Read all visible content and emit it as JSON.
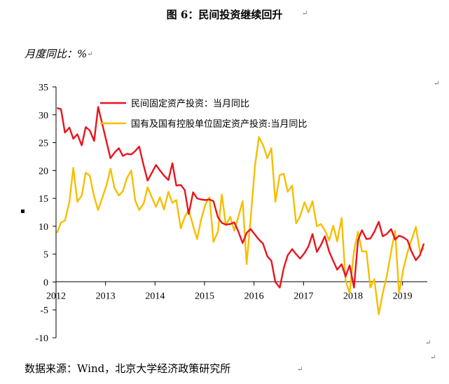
{
  "title": "图 6：民间投资继续回升",
  "unit_label": "月度同比：%",
  "source": "数据来源：Wind，北京大学经济政策研究所",
  "chart_data": {
    "type": "line",
    "title": "图 6：民间投资继续回升",
    "ylabel": "月度同比：%",
    "xlabel": "",
    "ylim": [
      -10,
      35
    ],
    "yticks": [
      "-10",
      "-5",
      "0",
      "5",
      "10",
      "15",
      "20",
      "25",
      "30",
      "35"
    ],
    "xlim": [
      2012,
      2019.5
    ],
    "xticks": [
      "2012",
      "2013",
      "2014",
      "2015",
      "2016",
      "2017",
      "2018",
      "2019"
    ],
    "legend_position": "top",
    "grid": false,
    "series": [
      {
        "name": "民间固定资产投资：当月同比",
        "color": "#e8141e",
        "points": [
          [
            2012.02,
            31.2
          ],
          [
            2012.1,
            31.0
          ],
          [
            2012.18,
            26.8
          ],
          [
            2012.27,
            27.7
          ],
          [
            2012.35,
            25.7
          ],
          [
            2012.43,
            26.5
          ],
          [
            2012.52,
            24.5
          ],
          [
            2012.6,
            27.8
          ],
          [
            2012.68,
            27.2
          ],
          [
            2012.77,
            25.3
          ],
          [
            2012.85,
            31.4
          ],
          [
            2012.93,
            28.5
          ],
          [
            2013.1,
            22.2
          ],
          [
            2013.18,
            23.2
          ],
          [
            2013.27,
            24.0
          ],
          [
            2013.35,
            22.6
          ],
          [
            2013.43,
            23.0
          ],
          [
            2013.52,
            22.9
          ],
          [
            2013.6,
            23.5
          ],
          [
            2013.68,
            24.3
          ],
          [
            2013.77,
            20.9
          ],
          [
            2013.85,
            18.2
          ],
          [
            2013.93,
            19.5
          ],
          [
            2014.02,
            21.0
          ],
          [
            2014.1,
            20.0
          ],
          [
            2014.18,
            19.1
          ],
          [
            2014.27,
            18.3
          ],
          [
            2014.35,
            21.3
          ],
          [
            2014.43,
            17.3
          ],
          [
            2014.52,
            17.4
          ],
          [
            2014.6,
            16.5
          ],
          [
            2014.68,
            12.2
          ],
          [
            2014.77,
            16.1
          ],
          [
            2014.85,
            15.0
          ],
          [
            2014.93,
            14.8
          ],
          [
            2015.02,
            14.7
          ],
          [
            2015.1,
            14.8
          ],
          [
            2015.18,
            14.5
          ],
          [
            2015.27,
            11.6
          ],
          [
            2015.35,
            10.6
          ],
          [
            2015.43,
            10.3
          ],
          [
            2015.52,
            10.4
          ],
          [
            2015.6,
            10.7
          ],
          [
            2015.68,
            9.1
          ],
          [
            2015.77,
            7.0
          ],
          [
            2015.85,
            8.8
          ],
          [
            2015.93,
            9.5
          ],
          [
            2016.1,
            7.6
          ],
          [
            2016.18,
            6.9
          ],
          [
            2016.27,
            4.6
          ],
          [
            2016.35,
            3.8
          ],
          [
            2016.43,
            0.0
          ],
          [
            2016.52,
            -1.0
          ],
          [
            2016.6,
            2.5
          ],
          [
            2016.68,
            4.8
          ],
          [
            2016.77,
            5.9
          ],
          [
            2016.85,
            5.0
          ],
          [
            2016.93,
            4.2
          ],
          [
            2017.02,
            5.2
          ],
          [
            2017.1,
            6.4
          ],
          [
            2017.18,
            8.6
          ],
          [
            2017.27,
            5.4
          ],
          [
            2017.35,
            6.6
          ],
          [
            2017.43,
            8.2
          ],
          [
            2017.52,
            5.4
          ],
          [
            2017.6,
            3.8
          ],
          [
            2017.68,
            2.2
          ],
          [
            2017.77,
            3.2
          ],
          [
            2017.85,
            1.0
          ],
          [
            2017.93,
            3.0
          ],
          [
            2018.02,
            -1.0
          ],
          [
            2018.1,
            7.5
          ],
          [
            2018.18,
            9.3
          ],
          [
            2018.27,
            7.7
          ],
          [
            2018.35,
            7.8
          ],
          [
            2018.43,
            9.0
          ],
          [
            2018.52,
            10.8
          ],
          [
            2018.6,
            8.2
          ],
          [
            2018.68,
            8.6
          ],
          [
            2018.77,
            9.5
          ],
          [
            2018.85,
            7.6
          ],
          [
            2018.93,
            8.3
          ],
          [
            2019.02,
            8.0
          ],
          [
            2019.1,
            7.5
          ],
          [
            2019.18,
            5.5
          ],
          [
            2019.27,
            3.9
          ],
          [
            2019.35,
            4.8
          ],
          [
            2019.43,
            6.9
          ]
        ]
      },
      {
        "name": "国有及国有控股单位固定资产投资:当月同比",
        "color": "#f6be00",
        "points": [
          [
            2012.02,
            8.8
          ],
          [
            2012.1,
            10.7
          ],
          [
            2012.18,
            11.0
          ],
          [
            2012.27,
            14.4
          ],
          [
            2012.35,
            20.5
          ],
          [
            2012.43,
            14.4
          ],
          [
            2012.52,
            15.5
          ],
          [
            2012.6,
            19.6
          ],
          [
            2012.68,
            19.1
          ],
          [
            2012.77,
            15.3
          ],
          [
            2012.85,
            12.9
          ],
          [
            2012.93,
            15.0
          ],
          [
            2013.02,
            17.4
          ],
          [
            2013.1,
            20.3
          ],
          [
            2013.18,
            16.9
          ],
          [
            2013.27,
            15.5
          ],
          [
            2013.35,
            16.3
          ],
          [
            2013.43,
            18.6
          ],
          [
            2013.52,
            20.0
          ],
          [
            2013.6,
            14.6
          ],
          [
            2013.68,
            12.9
          ],
          [
            2013.77,
            14.1
          ],
          [
            2013.85,
            17.0
          ],
          [
            2013.93,
            15.3
          ],
          [
            2014.02,
            13.5
          ],
          [
            2014.1,
            15.2
          ],
          [
            2014.18,
            13.0
          ],
          [
            2014.27,
            16.2
          ],
          [
            2014.35,
            14.2
          ],
          [
            2014.43,
            14.7
          ],
          [
            2014.52,
            9.6
          ],
          [
            2014.6,
            11.7
          ],
          [
            2014.68,
            12.9
          ],
          [
            2014.77,
            10.1
          ],
          [
            2014.85,
            7.7
          ],
          [
            2014.93,
            11.2
          ],
          [
            2015.02,
            14.0
          ],
          [
            2015.1,
            15.2
          ],
          [
            2015.18,
            7.2
          ],
          [
            2015.27,
            9.0
          ],
          [
            2015.35,
            15.7
          ],
          [
            2015.43,
            10.2
          ],
          [
            2015.52,
            11.7
          ],
          [
            2015.6,
            9.2
          ],
          [
            2015.68,
            11.6
          ],
          [
            2015.77,
            14.5
          ],
          [
            2015.85,
            3.2
          ],
          [
            2015.93,
            11.2
          ],
          [
            2016.02,
            21.0
          ],
          [
            2016.1,
            26.0
          ],
          [
            2016.18,
            24.6
          ],
          [
            2016.27,
            22.2
          ],
          [
            2016.35,
            24.0
          ],
          [
            2016.43,
            14.4
          ],
          [
            2016.52,
            19.2
          ],
          [
            2016.6,
            19.4
          ],
          [
            2016.68,
            16.2
          ],
          [
            2016.77,
            17.3
          ],
          [
            2016.85,
            10.5
          ],
          [
            2016.93,
            11.8
          ],
          [
            2017.02,
            14.3
          ],
          [
            2017.1,
            12.5
          ],
          [
            2017.18,
            14.5
          ],
          [
            2017.27,
            10.0
          ],
          [
            2017.35,
            10.4
          ],
          [
            2017.43,
            9.3
          ],
          [
            2017.52,
            7.5
          ],
          [
            2017.6,
            10.1
          ],
          [
            2017.68,
            7.3
          ],
          [
            2017.77,
            11.5
          ],
          [
            2017.85,
            0.3
          ],
          [
            2017.93,
            -2.0
          ],
          [
            2018.02,
            5.6
          ],
          [
            2018.1,
            9.0
          ],
          [
            2018.18,
            5.5
          ],
          [
            2018.27,
            5.5
          ],
          [
            2018.35,
            -1.0
          ],
          [
            2018.43,
            0.5
          ],
          [
            2018.52,
            -5.8
          ],
          [
            2018.6,
            -2.0
          ],
          [
            2018.68,
            1.0
          ],
          [
            2018.77,
            5.5
          ],
          [
            2018.85,
            9.2
          ],
          [
            2018.93,
            -2.0
          ],
          [
            2019.02,
            2.5
          ],
          [
            2019.1,
            5.3
          ],
          [
            2019.18,
            7.5
          ],
          [
            2019.27,
            9.9
          ],
          [
            2019.35,
            5.5
          ],
          [
            2019.43,
            6.0
          ]
        ]
      }
    ]
  }
}
